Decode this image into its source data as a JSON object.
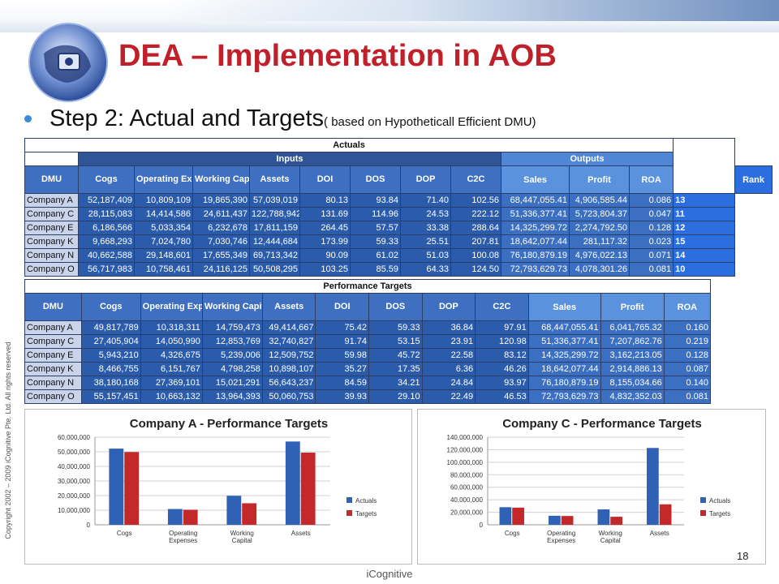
{
  "title": "DEA – Implementation in AOB",
  "bullet": {
    "main": "Step 2: Actual and Targets",
    "sub": "( based on Hypotheticall Efficient DMU)"
  },
  "copyright": "Copyright 2002 – 2009 iCognitive Pte. Ltd. All rights reserved",
  "footer": "iCognitive",
  "page_number": "18",
  "actuals_table": {
    "section_title": "Actuals",
    "group_inputs": "Inputs",
    "group_outputs": "Outputs",
    "headers": [
      "DMU",
      "Cogs",
      "Operating Expenses",
      "Working Capital",
      "Assets",
      "DOI",
      "DOS",
      "DOP",
      "C2C",
      "Sales",
      "Profit",
      "ROA",
      "Rank"
    ],
    "rows": [
      [
        "Company A",
        "52,187,409",
        "10,809,109",
        "19,865,390",
        "57,039,019",
        "80.13",
        "93.84",
        "71.40",
        "102.56",
        "68,447,055.41",
        "4,906,585.44",
        "0.086",
        "13"
      ],
      [
        "Company C",
        "28,115,083",
        "14,414,586",
        "24,611,437",
        "122,788,942",
        "131.69",
        "114.96",
        "24.53",
        "222.12",
        "51,336,377.41",
        "5,723,804.37",
        "0.047",
        "11"
      ],
      [
        "Company E",
        "6,186,566",
        "5,033,354",
        "6,232,678",
        "17,811,159",
        "264.45",
        "57.57",
        "33.38",
        "288.64",
        "14,325,299.72",
        "2,274,792.50",
        "0.128",
        "12"
      ],
      [
        "Company K",
        "9,668,293",
        "7,024,780",
        "7,030,746",
        "12,444,684",
        "173.99",
        "59.33",
        "25.51",
        "207.81",
        "18,642,077.44",
        "281,117.32",
        "0.023",
        "15"
      ],
      [
        "Company N",
        "40,662,588",
        "29,148,601",
        "17,655,349",
        "69,713,342",
        "90.09",
        "61.02",
        "51.03",
        "100.08",
        "76,180,879.19",
        "4,976,022.13",
        "0.071",
        "14"
      ],
      [
        "Company O",
        "56,717,983",
        "10,758,461",
        "24,116,125",
        "50,508,295",
        "103.25",
        "85.59",
        "64.33",
        "124.50",
        "72,793,629.73",
        "4,078,301.26",
        "0.081",
        "10"
      ]
    ]
  },
  "targets_table": {
    "section_title": "Performance Targets",
    "headers": [
      "DMU",
      "Cogs",
      "Operating Expenses",
      "Working Capital",
      "Assets",
      "DOI",
      "DOS",
      "DOP",
      "C2C",
      "Sales",
      "Profit",
      "ROA"
    ],
    "rows": [
      [
        "Company A",
        "49,817,789",
        "10,318,311",
        "14,759,473",
        "49,414,667",
        "75.42",
        "59.33",
        "36.84",
        "97.91",
        "68,447,055.41",
        "6,041,765.32",
        "0.160"
      ],
      [
        "Company C",
        "27,405,904",
        "14,050,990",
        "12,853,769",
        "32,740,827",
        "91.74",
        "53.15",
        "23.91",
        "120.98",
        "51,336,377.41",
        "7,207,862.76",
        "0.219"
      ],
      [
        "Company E",
        "5,943,210",
        "4,326,675",
        "5,239,006",
        "12,509,752",
        "59.98",
        "45.72",
        "22.58",
        "83.12",
        "14,325,299.72",
        "3,162,213.05",
        "0.128"
      ],
      [
        "Company K",
        "8,466,755",
        "6,151,767",
        "4,798,258",
        "10,898,107",
        "35.27",
        "17.35",
        "6.36",
        "46.26",
        "18,642,077.44",
        "2,914,886.13",
        "0.087"
      ],
      [
        "Company N",
        "38,180,168",
        "27,369,101",
        "15,021,291",
        "56,643,237",
        "84.59",
        "34.21",
        "24.84",
        "93.97",
        "76,180,879.19",
        "8,155,034.66",
        "0.140"
      ],
      [
        "Company O",
        "55,157,451",
        "10,663,132",
        "13,964,393",
        "50,060,753",
        "39.93",
        "29.10",
        "22.49",
        "46.53",
        "72,793,629.73",
        "4,832,352.03",
        "0.081"
      ]
    ]
  },
  "colors": {
    "actuals": "#2f62b5",
    "targets": "#c3282b",
    "title": "#c0202a"
  },
  "chart_data": [
    {
      "type": "bar",
      "title": "Company A - Performance Targets",
      "categories": [
        "Cogs",
        "Operating Expenses",
        "Working Capital",
        "Assets"
      ],
      "series": [
        {
          "name": "Actuals",
          "values": [
            52187409,
            10809109,
            19865390,
            57039019
          ]
        },
        {
          "name": "Targets",
          "values": [
            49817789,
            10318311,
            14759473,
            49414667
          ]
        }
      ],
      "ylim": [
        0,
        60000000
      ],
      "yticks": [
        "60,000,000",
        "50,000,000",
        "40,000,000",
        "30,000,000",
        "20,000,000",
        "10,000,000",
        "0"
      ],
      "grid": true,
      "legend": "right"
    },
    {
      "type": "bar",
      "title": "Company C - Performance Targets",
      "categories": [
        "Cogs",
        "Operating Expenses",
        "Working Capital",
        "Assets"
      ],
      "series": [
        {
          "name": "Actuals",
          "values": [
            28115083,
            14414586,
            24611437,
            122788942
          ]
        },
        {
          "name": "Targets",
          "values": [
            27405904,
            14050990,
            12853769,
            32740827
          ]
        }
      ],
      "ylim": [
        0,
        140000000
      ],
      "yticks": [
        "140,000,000",
        "120,000,000",
        "100,000,000",
        "80,000,000",
        "60,000,000",
        "40,000,000",
        "20,000,000",
        "0"
      ],
      "grid": true,
      "legend": "right"
    }
  ]
}
